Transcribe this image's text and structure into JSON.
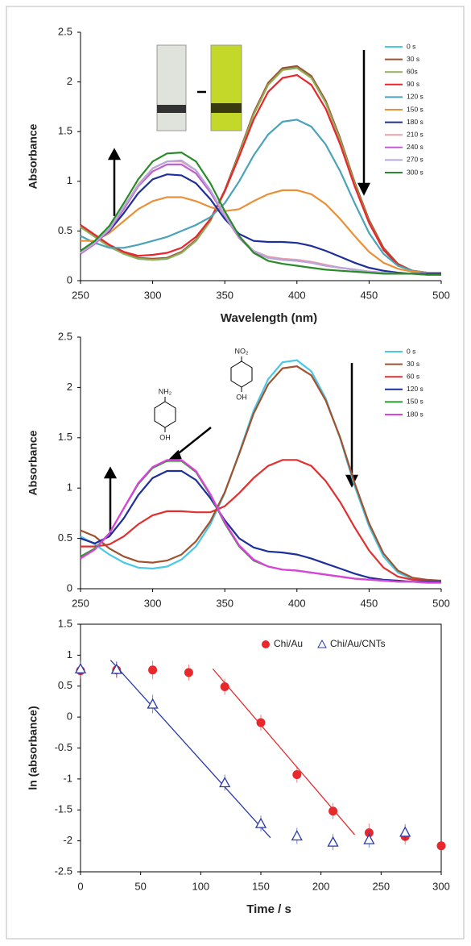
{
  "chart_data": [
    {
      "type": "line",
      "xlabel": "Wavelength (nm)",
      "ylabel": "Absorbance",
      "x": [
        250,
        260,
        270,
        280,
        290,
        300,
        310,
        320,
        330,
        340,
        350,
        360,
        370,
        380,
        390,
        400,
        410,
        420,
        430,
        440,
        450,
        460,
        470,
        480,
        490,
        500
      ],
      "xlim": [
        250,
        500
      ],
      "xticks": [
        250,
        300,
        350,
        400,
        450,
        500
      ],
      "ylim": [
        0,
        2.5
      ],
      "yticks": [
        0,
        0.5,
        1,
        1.5,
        2,
        2.5
      ],
      "series": [
        {
          "name": "0 s",
          "color": "#4bc7e8",
          "values": [
            0.55,
            0.45,
            0.35,
            0.27,
            0.22,
            0.21,
            0.22,
            0.28,
            0.4,
            0.6,
            0.9,
            1.28,
            1.68,
            1.98,
            2.13,
            2.15,
            2.05,
            1.8,
            1.42,
            0.98,
            0.6,
            0.32,
            0.16,
            0.1,
            0.08,
            0.08
          ]
        },
        {
          "name": "30 s",
          "color": "#a0522d",
          "values": [
            0.56,
            0.46,
            0.36,
            0.28,
            0.23,
            0.22,
            0.23,
            0.29,
            0.41,
            0.61,
            0.91,
            1.29,
            1.69,
            1.99,
            2.14,
            2.16,
            2.06,
            1.81,
            1.43,
            0.99,
            0.61,
            0.33,
            0.17,
            0.1,
            0.08,
            0.08
          ]
        },
        {
          "name": "60s",
          "color": "#8fae5a",
          "values": [
            0.54,
            0.44,
            0.34,
            0.27,
            0.22,
            0.21,
            0.22,
            0.28,
            0.4,
            0.6,
            0.9,
            1.27,
            1.67,
            1.97,
            2.12,
            2.14,
            2.04,
            1.79,
            1.41,
            0.97,
            0.59,
            0.31,
            0.16,
            0.1,
            0.08,
            0.08
          ]
        },
        {
          "name": "90 s",
          "color": "#e8262b",
          "values": [
            0.56,
            0.46,
            0.36,
            0.29,
            0.25,
            0.26,
            0.28,
            0.33,
            0.44,
            0.62,
            0.9,
            1.25,
            1.62,
            1.9,
            2.04,
            2.07,
            1.97,
            1.73,
            1.37,
            0.95,
            0.58,
            0.31,
            0.16,
            0.1,
            0.08,
            0.08
          ]
        },
        {
          "name": "120 s",
          "color": "#4aa3b8",
          "values": [
            0.45,
            0.38,
            0.33,
            0.33,
            0.36,
            0.4,
            0.44,
            0.5,
            0.56,
            0.64,
            0.78,
            1.0,
            1.26,
            1.47,
            1.6,
            1.62,
            1.55,
            1.37,
            1.1,
            0.78,
            0.48,
            0.27,
            0.15,
            0.1,
            0.08,
            0.08
          ]
        },
        {
          "name": "150 s",
          "color": "#e8913a",
          "values": [
            0.4,
            0.4,
            0.48,
            0.6,
            0.72,
            0.8,
            0.84,
            0.84,
            0.8,
            0.74,
            0.7,
            0.72,
            0.8,
            0.87,
            0.91,
            0.91,
            0.87,
            0.77,
            0.62,
            0.45,
            0.29,
            0.18,
            0.12,
            0.09,
            0.08,
            0.08
          ]
        },
        {
          "name": "180 s",
          "color": "#1f2f9a",
          "values": [
            0.3,
            0.38,
            0.5,
            0.68,
            0.88,
            1.02,
            1.07,
            1.06,
            0.98,
            0.82,
            0.62,
            0.47,
            0.4,
            0.39,
            0.39,
            0.38,
            0.35,
            0.3,
            0.24,
            0.18,
            0.13,
            0.1,
            0.08,
            0.07,
            0.07,
            0.07
          ]
        },
        {
          "name": "210 s",
          "color": "#e8a0a8",
          "values": [
            0.28,
            0.38,
            0.52,
            0.74,
            0.97,
            1.13,
            1.2,
            1.2,
            1.11,
            0.91,
            0.66,
            0.44,
            0.3,
            0.24,
            0.22,
            0.21,
            0.19,
            0.16,
            0.13,
            0.11,
            0.09,
            0.08,
            0.07,
            0.07,
            0.06,
            0.06
          ]
        },
        {
          "name": "240 s",
          "color": "#c060d0",
          "values": [
            0.27,
            0.37,
            0.51,
            0.72,
            0.95,
            1.1,
            1.17,
            1.17,
            1.08,
            0.89,
            0.65,
            0.43,
            0.29,
            0.23,
            0.21,
            0.2,
            0.18,
            0.15,
            0.13,
            0.11,
            0.09,
            0.08,
            0.07,
            0.07,
            0.06,
            0.06
          ]
        },
        {
          "name": "270 s",
          "color": "#b8a8d8",
          "values": [
            0.28,
            0.38,
            0.52,
            0.74,
            0.96,
            1.13,
            1.2,
            1.21,
            1.11,
            0.91,
            0.66,
            0.44,
            0.3,
            0.23,
            0.21,
            0.2,
            0.18,
            0.15,
            0.13,
            0.11,
            0.09,
            0.08,
            0.07,
            0.07,
            0.06,
            0.06
          ]
        },
        {
          "name": "300 s",
          "color": "#2a8a2a",
          "values": [
            0.3,
            0.4,
            0.55,
            0.78,
            1.02,
            1.2,
            1.28,
            1.29,
            1.2,
            0.98,
            0.7,
            0.45,
            0.28,
            0.2,
            0.17,
            0.15,
            0.13,
            0.11,
            0.1,
            0.09,
            0.08,
            0.07,
            0.07,
            0.07,
            0.06,
            0.06
          ]
        }
      ]
    },
    {
      "type": "line",
      "ylabel": "Absorbance",
      "annotations": [
        "NH₂",
        "OH",
        "NO₂",
        "OH"
      ],
      "x": [
        250,
        260,
        270,
        280,
        290,
        300,
        310,
        320,
        330,
        340,
        350,
        360,
        370,
        380,
        390,
        400,
        410,
        420,
        430,
        440,
        450,
        460,
        470,
        480,
        490,
        500
      ],
      "xlim": [
        250,
        500
      ],
      "xticks": [
        250,
        300,
        350,
        400,
        450,
        500
      ],
      "ylim": [
        0,
        2.5
      ],
      "yticks": [
        0,
        0.5,
        1,
        1.5,
        2,
        2.5
      ],
      "series": [
        {
          "name": "0 s",
          "color": "#4bc7e8",
          "values": [
            0.52,
            0.44,
            0.34,
            0.26,
            0.21,
            0.2,
            0.22,
            0.29,
            0.42,
            0.64,
            0.95,
            1.35,
            1.77,
            2.08,
            2.25,
            2.27,
            2.16,
            1.89,
            1.49,
            1.02,
            0.62,
            0.32,
            0.16,
            0.1,
            0.08,
            0.08
          ]
        },
        {
          "name": "30 s",
          "color": "#a0522d",
          "values": [
            0.58,
            0.52,
            0.4,
            0.32,
            0.27,
            0.26,
            0.28,
            0.34,
            0.47,
            0.67,
            0.96,
            1.34,
            1.74,
            2.03,
            2.19,
            2.21,
            2.12,
            1.87,
            1.5,
            1.05,
            0.65,
            0.35,
            0.18,
            0.11,
            0.09,
            0.08
          ]
        },
        {
          "name": "60 s",
          "color": "#e03030",
          "values": [
            0.42,
            0.42,
            0.44,
            0.52,
            0.64,
            0.73,
            0.77,
            0.77,
            0.76,
            0.76,
            0.82,
            0.95,
            1.1,
            1.22,
            1.28,
            1.28,
            1.22,
            1.07,
            0.86,
            0.61,
            0.38,
            0.21,
            0.12,
            0.09,
            0.08,
            0.07
          ]
        },
        {
          "name": "120 s",
          "color": "#1f2f9a",
          "values": [
            0.5,
            0.45,
            0.52,
            0.7,
            0.93,
            1.1,
            1.17,
            1.17,
            1.08,
            0.9,
            0.68,
            0.5,
            0.41,
            0.37,
            0.36,
            0.34,
            0.3,
            0.25,
            0.2,
            0.15,
            0.11,
            0.09,
            0.08,
            0.07,
            0.07,
            0.07
          ]
        },
        {
          "name": "150 s",
          "color": "#2a9a2a",
          "values": [
            0.32,
            0.4,
            0.55,
            0.8,
            1.04,
            1.2,
            1.27,
            1.27,
            1.16,
            0.93,
            0.65,
            0.42,
            0.28,
            0.22,
            0.19,
            0.18,
            0.16,
            0.14,
            0.12,
            0.1,
            0.09,
            0.08,
            0.07,
            0.07,
            0.06,
            0.06
          ]
        },
        {
          "name": "180 s",
          "color": "#e040e0",
          "values": [
            0.3,
            0.39,
            0.55,
            0.8,
            1.05,
            1.21,
            1.28,
            1.28,
            1.17,
            0.94,
            0.66,
            0.43,
            0.29,
            0.22,
            0.19,
            0.18,
            0.16,
            0.14,
            0.12,
            0.1,
            0.09,
            0.08,
            0.07,
            0.07,
            0.06,
            0.06
          ]
        }
      ]
    },
    {
      "type": "scatter",
      "xlabel": "Time / s",
      "ylabel": "ln (absorbance)",
      "box": true,
      "xlim": [
        0,
        300
      ],
      "xticks": [
        0,
        50,
        100,
        150,
        200,
        250,
        300
      ],
      "ylim": [
        -2.5,
        1.5
      ],
      "yticks": [
        -2.5,
        -2,
        -1.5,
        -1,
        -0.5,
        0,
        0.5,
        1,
        1.5
      ],
      "series": [
        {
          "name": "Chi/Au",
          "color": "#e8282b",
          "marker": "circle",
          "x": [
            0,
            30,
            60,
            90,
            120,
            150,
            180,
            210,
            240,
            270,
            300
          ],
          "values": [
            0.75,
            0.76,
            0.76,
            0.72,
            0.49,
            -0.09,
            -0.93,
            -1.52,
            -1.87,
            -1.93,
            -2.08
          ],
          "errors": [
            0.13,
            0.13,
            0.15,
            0.13,
            0.13,
            0.13,
            0.13,
            0.13,
            0.15,
            0.13,
            0
          ]
        },
        {
          "name": "Chi/Au/CNTs",
          "color": "#2a3aa8",
          "marker": "triangle",
          "x": [
            0,
            30,
            60,
            120,
            150,
            180,
            210,
            240,
            270
          ],
          "values": [
            0.78,
            0.77,
            0.21,
            -1.06,
            -1.72,
            -1.92,
            -2.02,
            -1.98,
            -1.86
          ],
          "errors": [
            0.13,
            0.13,
            0.15,
            0.13,
            0.13,
            0.13,
            0.13,
            0.13,
            0.13
          ]
        }
      ],
      "fits": [
        {
          "color": "#e8282b",
          "x": [
            110,
            228
          ],
          "values": [
            0.78,
            -1.9
          ]
        },
        {
          "color": "#2a3aa8",
          "x": [
            25,
            158
          ],
          "values": [
            0.92,
            -1.95
          ]
        }
      ]
    }
  ]
}
